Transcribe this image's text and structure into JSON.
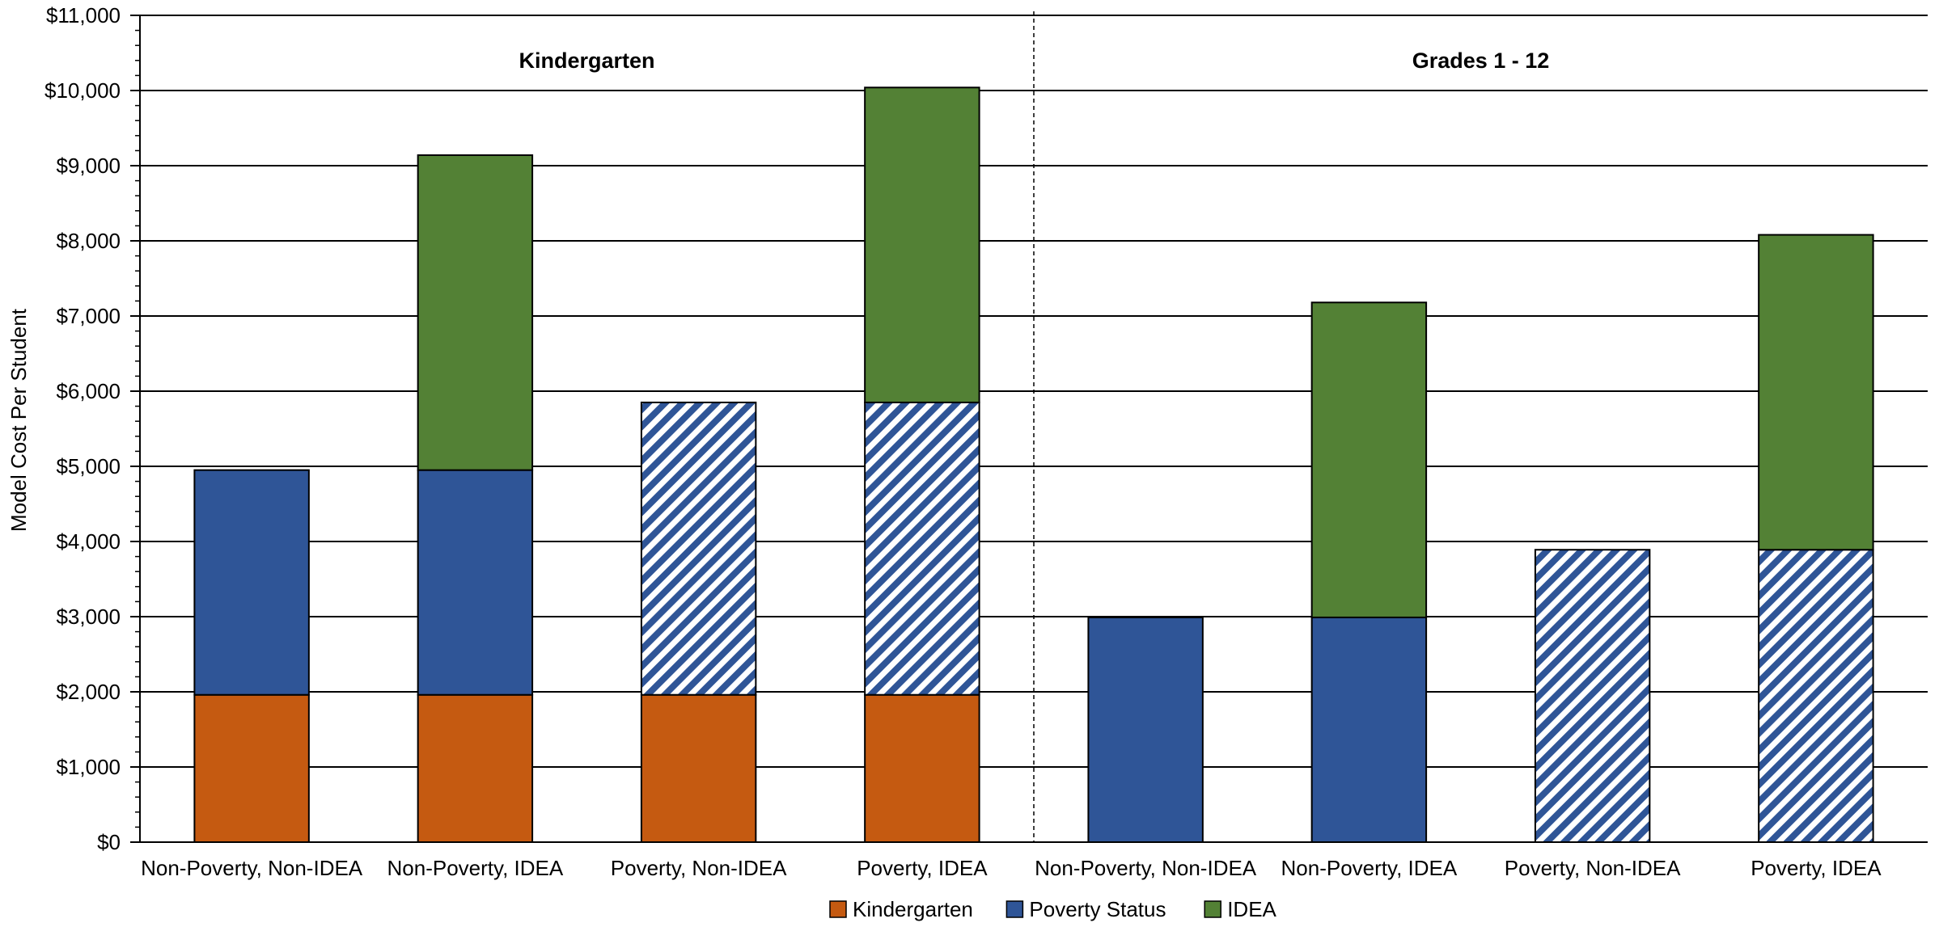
{
  "chart_data": {
    "type": "bar",
    "stacked": true,
    "ylabel": "Model Cost Per Student",
    "ylim": [
      0,
      11000
    ],
    "y_ticks": [
      "$0",
      "$1,000",
      "$2,000",
      "$3,000",
      "$4,000",
      "$5,000",
      "$6,000",
      "$7,000",
      "$8,000",
      "$9,000",
      "$10,000",
      "$11,000"
    ],
    "grid": true,
    "legend_position": "bottom",
    "groups": [
      {
        "label": "Kindergarten",
        "categories": [
          "Non-Poverty, Non-IDEA",
          "Non-Poverty, IDEA",
          "Poverty, Non-IDEA",
          "Poverty, IDEA"
        ]
      },
      {
        "label": "Grades 1 - 12",
        "categories": [
          "Non-Poverty, Non-IDEA",
          "Non-Poverty, IDEA",
          "Poverty, Non-IDEA",
          "Poverty, IDEA"
        ]
      }
    ],
    "categories": [
      "Non-Poverty, Non-IDEA",
      "Non-Poverty, IDEA",
      "Poverty, Non-IDEA",
      "Poverty, IDEA",
      "Non-Poverty, Non-IDEA",
      "Non-Poverty, IDEA",
      "Poverty, Non-IDEA",
      "Poverty, IDEA"
    ],
    "series": [
      {
        "name": "Kindergarten",
        "color": "#C55A11",
        "values": [
          1960,
          1960,
          1960,
          1960,
          0,
          0,
          0,
          0
        ]
      },
      {
        "name": "Poverty Status",
        "color": "#2F5597",
        "values": [
          2990,
          2990,
          3890,
          3890,
          2990,
          2990,
          3890,
          3890
        ],
        "hatched_categories": [
          2,
          3,
          6,
          7
        ]
      },
      {
        "name": "IDEA",
        "color": "#538135",
        "values": [
          0,
          4190,
          0,
          4190,
          0,
          4190,
          0,
          4190
        ]
      }
    ]
  }
}
